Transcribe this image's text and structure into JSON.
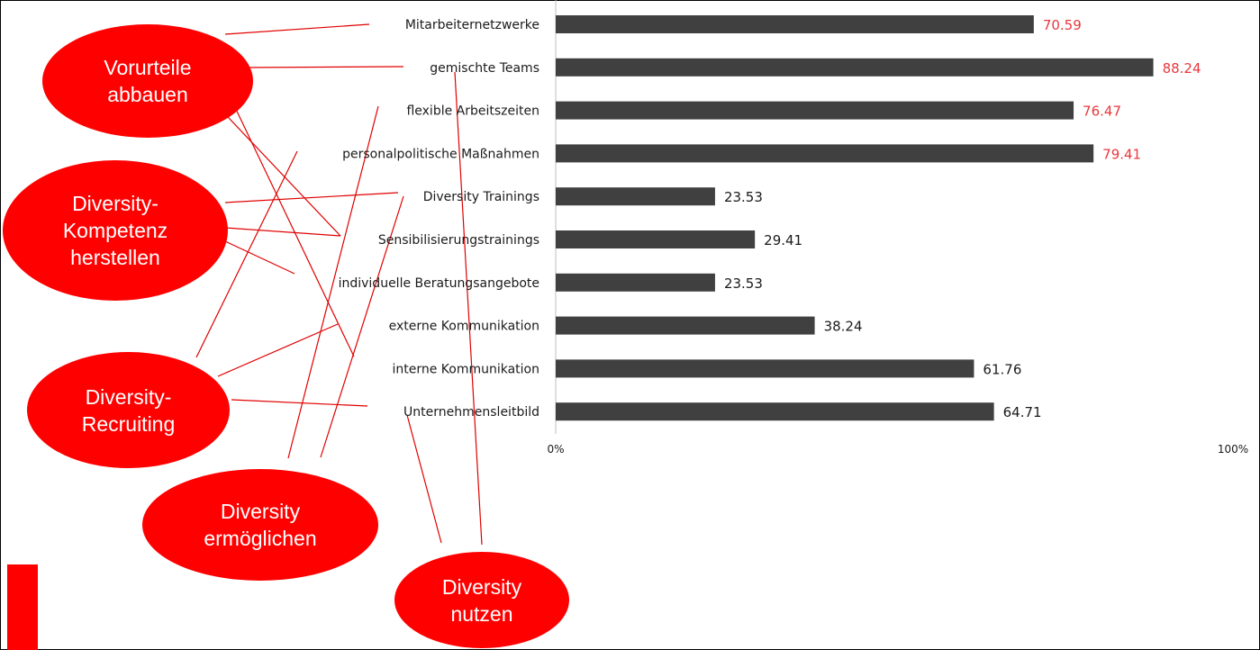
{
  "chart_data": {
    "type": "bar",
    "orientation": "horizontal",
    "categories": [
      "Mitarbeiternetzwerke",
      "gemischte Teams",
      "flexible Arbeitszeiten",
      "personalpolitische Maßnahmen",
      "Diversity Trainings",
      "Sensibilisierungstrainings",
      "individuelle Beratungsangebote",
      "externe Kommunikation",
      "interne Kommunikation",
      "Unternehmensleitbild"
    ],
    "values": [
      70.59,
      88.24,
      76.47,
      79.41,
      23.53,
      29.41,
      23.53,
      38.24,
      61.76,
      64.71
    ],
    "value_labels": [
      "70.59",
      "88.24",
      "76.47",
      "79.41",
      "23.53",
      "29.41",
      "23.53",
      "38.24",
      "61.76",
      "64.71"
    ],
    "highlighted": [
      true,
      true,
      true,
      true,
      false,
      false,
      false,
      false,
      false,
      false
    ],
    "xlim": [
      0,
      100
    ],
    "xticks": [
      "0%",
      "100%"
    ],
    "grid": false,
    "title": "",
    "xlabel": "",
    "ylabel": ""
  },
  "bubbles": [
    {
      "label": "Vorurteile\nabbauen",
      "links": [
        "Mitarbeiternetzwerke",
        "gemischte Teams",
        "Sensibilisierungstrainings",
        "interne Kommunikation"
      ]
    },
    {
      "label": "Diversity-\nKompetenz\nherstellen",
      "links": [
        "Diversity Trainings",
        "Sensibilisierungstrainings",
        "individuelle Beratungsangebote"
      ]
    },
    {
      "label": "Diversity-\nRecruiting",
      "links": [
        "personalpolitische Maßnahmen",
        "externe Kommunikation",
        "Unternehmensleitbild"
      ]
    },
    {
      "label": "Diversity\nermöglichen",
      "links": [
        "flexible Arbeitszeiten",
        "Diversity Trainings"
      ]
    },
    {
      "label": "Diversity\nnutzen",
      "links": [
        "gemischte Teams",
        "Unternehmensleitbild"
      ]
    }
  ],
  "colors": {
    "bar": "#404040",
    "highlight_label": "#e8383d",
    "default_label": "#1a1a1a",
    "axis": "#bfbfbf",
    "bubble": "#ff0000",
    "connector": "#e00000"
  }
}
